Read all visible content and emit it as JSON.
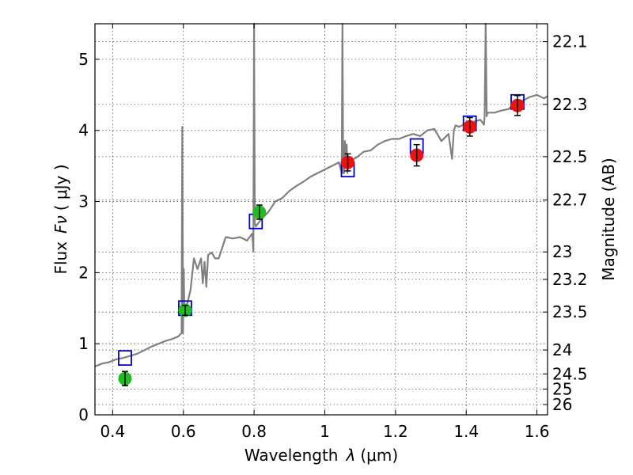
{
  "chart_data": {
    "type": "scatter",
    "title": "",
    "xlabel_text": "Wavelength",
    "xlabel_symbol": "λ",
    "xlabel_unit": "(μm)",
    "ylabel_text": "Flux",
    "ylabel_symbol": "Fν",
    "ylabel_unit": "( μJy )",
    "y2label": "Magnitude (AB)",
    "xlim": [
      0.35,
      1.63
    ],
    "ylim": [
      0,
      5.5
    ],
    "grid": true,
    "x_ticks": [
      {
        "value": 0.4,
        "label": "0.4"
      },
      {
        "value": 0.6,
        "label": "0.6"
      },
      {
        "value": 0.8,
        "label": "0.8"
      },
      {
        "value": 1.0,
        "label": "1"
      },
      {
        "value": 1.2,
        "label": "1.2"
      },
      {
        "value": 1.4,
        "label": "1.4"
      },
      {
        "value": 1.6,
        "label": "1.6"
      }
    ],
    "y_ticks": [
      {
        "value": 0,
        "label": "0"
      },
      {
        "value": 1,
        "label": "1"
      },
      {
        "value": 2,
        "label": "2"
      },
      {
        "value": 3,
        "label": "3"
      },
      {
        "value": 4,
        "label": "4"
      },
      {
        "value": 5,
        "label": "5"
      }
    ],
    "y2_ticks": [
      {
        "value": 22.1,
        "label": "22.1"
      },
      {
        "value": 22.3,
        "label": "22.3"
      },
      {
        "value": 22.5,
        "label": "22.5"
      },
      {
        "value": 22.7,
        "label": "22.7"
      },
      {
        "value": 23.0,
        "label": "23"
      },
      {
        "value": 23.2,
        "label": "23.2"
      },
      {
        "value": 23.5,
        "label": "23.5"
      },
      {
        "value": 24.0,
        "label": "24"
      },
      {
        "value": 24.5,
        "label": "24.5"
      },
      {
        "value": 25.0,
        "label": "25"
      },
      {
        "value": 26.0,
        "label": "26"
      }
    ],
    "series": [
      {
        "kind": "line",
        "color": "#808080",
        "x": [
          0.35,
          0.37,
          0.39,
          0.41,
          0.43,
          0.45,
          0.47,
          0.49,
          0.51,
          0.53,
          0.55,
          0.57,
          0.585,
          0.595,
          0.597,
          0.599,
          0.601,
          0.603,
          0.62,
          0.63,
          0.64,
          0.65,
          0.655,
          0.66,
          0.665,
          0.67,
          0.68,
          0.69,
          0.7,
          0.72,
          0.74,
          0.76,
          0.78,
          0.795,
          0.798,
          0.8,
          0.802,
          0.805,
          0.82,
          0.84,
          0.86,
          0.88,
          0.9,
          0.92,
          0.94,
          0.96,
          0.98,
          1.0,
          1.02,
          1.04,
          1.048,
          1.05,
          1.052,
          1.055,
          1.057,
          1.06,
          1.062,
          1.064,
          1.066,
          1.07,
          1.09,
          1.11,
          1.13,
          1.15,
          1.17,
          1.19,
          1.21,
          1.23,
          1.25,
          1.27,
          1.29,
          1.31,
          1.33,
          1.35,
          1.36,
          1.365,
          1.37,
          1.38,
          1.4,
          1.42,
          1.44,
          1.45,
          1.452,
          1.455,
          1.458,
          1.46,
          1.48,
          1.5,
          1.52,
          1.54,
          1.56,
          1.58,
          1.6,
          1.62,
          1.63
        ],
        "y": [
          0.68,
          0.72,
          0.74,
          0.78,
          0.8,
          0.83,
          0.86,
          0.91,
          0.96,
          1.0,
          1.04,
          1.07,
          1.1,
          1.15,
          4.05,
          1.15,
          2.05,
          1.4,
          1.75,
          2.2,
          2.05,
          2.2,
          1.85,
          2.15,
          1.8,
          2.25,
          2.28,
          2.2,
          2.2,
          2.5,
          2.48,
          2.5,
          2.45,
          2.55,
          2.3,
          5.5,
          2.7,
          2.65,
          2.75,
          2.85,
          3.0,
          3.05,
          3.15,
          3.22,
          3.28,
          3.35,
          3.4,
          3.45,
          3.5,
          3.55,
          3.4,
          5.5,
          3.4,
          3.4,
          3.85,
          3.5,
          3.8,
          3.4,
          3.55,
          3.57,
          3.62,
          3.7,
          3.72,
          3.8,
          3.85,
          3.88,
          3.88,
          3.92,
          3.95,
          3.92,
          4.0,
          4.02,
          3.85,
          3.95,
          3.6,
          4.0,
          4.07,
          4.05,
          4.1,
          4.12,
          4.15,
          4.08,
          4.2,
          5.5,
          4.2,
          4.25,
          4.25,
          4.28,
          4.3,
          4.4,
          4.42,
          4.47,
          4.5,
          4.45,
          4.48
        ]
      }
    ],
    "model_points": {
      "marker": "square",
      "color": "#0000cc",
      "x": [
        0.435,
        0.605,
        0.805,
        1.065,
        1.26,
        1.41,
        1.545
      ],
      "y": [
        0.8,
        1.5,
        2.72,
        3.45,
        3.78,
        4.1,
        4.4
      ]
    },
    "observed_points": [
      {
        "x": 0.435,
        "y": 0.51,
        "err": 0.1,
        "color": "#22bb22"
      },
      {
        "x": 0.605,
        "y": 1.47,
        "err": 0.07,
        "color": "#22bb22"
      },
      {
        "x": 0.815,
        "y": 2.85,
        "err": 0.1,
        "color": "#22bb22"
      },
      {
        "x": 1.065,
        "y": 3.55,
        "err": 0.12,
        "color": "#ee1111"
      },
      {
        "x": 1.26,
        "y": 3.65,
        "err": 0.15,
        "color": "#ee1111"
      },
      {
        "x": 1.41,
        "y": 4.05,
        "err": 0.13,
        "color": "#ee1111"
      },
      {
        "x": 1.545,
        "y": 4.35,
        "err": 0.14,
        "color": "#ee1111"
      }
    ]
  }
}
